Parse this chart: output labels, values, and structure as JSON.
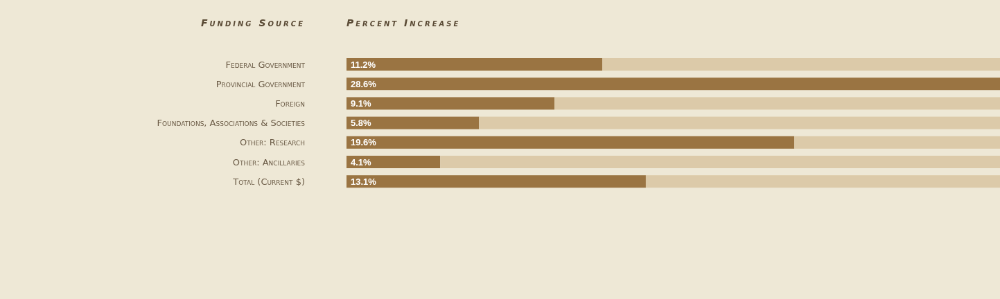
{
  "chart_data": {
    "type": "bar",
    "orientation": "horizontal",
    "stacked": true,
    "ylabel": "Funding Source",
    "xlabel": "Percent Increase",
    "categories": [
      "Federal Government",
      "Provincial Government",
      "Foreign",
      "Foundations, Associations & Societies",
      "Other: Research",
      "Other: Ancillaries",
      "Total (Current $)"
    ],
    "series": [
      {
        "color": "#9a7442",
        "values": [
          11.2,
          28.6,
          9.1,
          5.8,
          19.6,
          4.1,
          13.1
        ],
        "value_labels": [
          "11.2%",
          "28.6%",
          "9.1%",
          "5.8%",
          "19.6%",
          "4.1%",
          "13.1%"
        ]
      },
      {
        "color": "#dccaa9",
        "values": [
          17.4,
          0,
          19.5,
          22.8,
          9.0,
          24.5,
          15.5
        ]
      }
    ],
    "xlim": [
      0,
      28.6
    ],
    "tick_labels": "y"
  }
}
